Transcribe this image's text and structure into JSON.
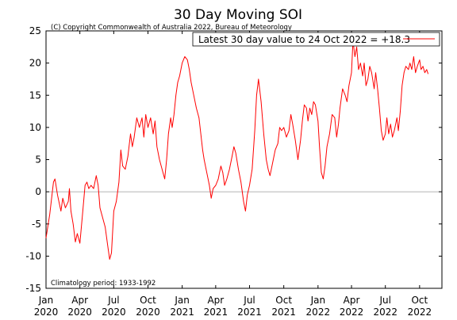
{
  "chart_data": {
    "type": "line",
    "title": "30 Day Moving SOI",
    "copyright": "(C) Copyright Commonwealth of Australia 2022, Bureau of Meteorology",
    "climatology": "Climatology period: 1933-1992",
    "xlabel": "",
    "ylabel": "",
    "ylim": [
      -15,
      25
    ],
    "xlim": [
      "2020-01-01",
      "2022-11-30"
    ],
    "y_ticks": [
      -15,
      -10,
      -5,
      0,
      5,
      10,
      15,
      20,
      25
    ],
    "x_ticks": [
      {
        "date": "2020-01-01",
        "month": "Jan",
        "year": "2020"
      },
      {
        "date": "2020-04-01",
        "month": "Apr",
        "year": "2020"
      },
      {
        "date": "2020-07-01",
        "month": "Jul",
        "year": "2020"
      },
      {
        "date": "2020-10-01",
        "month": "Oct",
        "year": "2020"
      },
      {
        "date": "2021-01-01",
        "month": "Jan",
        "year": "2021"
      },
      {
        "date": "2021-04-01",
        "month": "Apr",
        "year": "2021"
      },
      {
        "date": "2021-07-01",
        "month": "Jul",
        "year": "2021"
      },
      {
        "date": "2021-10-01",
        "month": "Oct",
        "year": "2021"
      },
      {
        "date": "2022-01-01",
        "month": "Jan",
        "year": "2022"
      },
      {
        "date": "2022-04-01",
        "month": "Apr",
        "year": "2022"
      },
      {
        "date": "2022-07-01",
        "month": "Jul",
        "year": "2022"
      },
      {
        "date": "2022-10-01",
        "month": "Oct",
        "year": "2022"
      }
    ],
    "zero_line": true,
    "grid": false,
    "legend": {
      "position": "top-right",
      "label": "Latest 30 day value to 24 Oct 2022 = +18.3"
    },
    "series": [
      {
        "name": "Latest 30 day value to 24 Oct 2022 = +18.3",
        "color": "#ff0000",
        "points": [
          [
            "2020-01-01",
            -7.2
          ],
          [
            "2020-01-11",
            -3.5
          ],
          [
            "2020-01-21",
            1.5
          ],
          [
            "2020-01-25",
            2.0
          ],
          [
            "2020-02-01",
            -0.5
          ],
          [
            "2020-02-10",
            -3.0
          ],
          [
            "2020-02-15",
            -1.0
          ],
          [
            "2020-02-22",
            -2.5
          ],
          [
            "2020-03-01",
            -1.5
          ],
          [
            "2020-03-04",
            0.5
          ],
          [
            "2020-03-08",
            -3.0
          ],
          [
            "2020-03-14",
            -5.0
          ],
          [
            "2020-03-20",
            -7.8
          ],
          [
            "2020-03-25",
            -6.5
          ],
          [
            "2020-04-01",
            -8.0
          ],
          [
            "2020-04-08",
            -3.5
          ],
          [
            "2020-04-15",
            1.0
          ],
          [
            "2020-04-20",
            1.5
          ],
          [
            "2020-04-25",
            0.5
          ],
          [
            "2020-05-01",
            1.0
          ],
          [
            "2020-05-08",
            0.5
          ],
          [
            "2020-05-15",
            2.5
          ],
          [
            "2020-05-20",
            1.0
          ],
          [
            "2020-05-25",
            -2.5
          ],
          [
            "2020-06-01",
            -4.0
          ],
          [
            "2020-06-08",
            -5.5
          ],
          [
            "2020-06-15",
            -8.5
          ],
          [
            "2020-06-20",
            -10.5
          ],
          [
            "2020-06-25",
            -9.5
          ],
          [
            "2020-07-01",
            -3.0
          ],
          [
            "2020-07-08",
            -1.5
          ],
          [
            "2020-07-15",
            1.5
          ],
          [
            "2020-07-20",
            6.5
          ],
          [
            "2020-07-25",
            4.0
          ],
          [
            "2020-08-01",
            3.5
          ],
          [
            "2020-08-08",
            5.5
          ],
          [
            "2020-08-15",
            9.0
          ],
          [
            "2020-08-20",
            7.0
          ],
          [
            "2020-08-25",
            8.5
          ],
          [
            "2020-09-01",
            11.5
          ],
          [
            "2020-09-08",
            10.0
          ],
          [
            "2020-09-15",
            11.5
          ],
          [
            "2020-09-20",
            8.5
          ],
          [
            "2020-09-25",
            12.0
          ],
          [
            "2020-10-01",
            10.0
          ],
          [
            "2020-10-08",
            11.5
          ],
          [
            "2020-10-15",
            9.0
          ],
          [
            "2020-10-20",
            11.0
          ],
          [
            "2020-10-25",
            7.0
          ],
          [
            "2020-11-01",
            5.0
          ],
          [
            "2020-11-08",
            3.5
          ],
          [
            "2020-11-15",
            2.0
          ],
          [
            "2020-11-20",
            5.0
          ],
          [
            "2020-11-25",
            9.0
          ],
          [
            "2020-12-01",
            11.5
          ],
          [
            "2020-12-05",
            10.0
          ],
          [
            "2020-12-10",
            12.0
          ],
          [
            "2020-12-15",
            15.0
          ],
          [
            "2020-12-20",
            17.0
          ],
          [
            "2020-12-25",
            18.0
          ],
          [
            "2021-01-01",
            20.0
          ],
          [
            "2021-01-08",
            21.0
          ],
          [
            "2021-01-15",
            20.5
          ],
          [
            "2021-01-20",
            19.0
          ],
          [
            "2021-01-25",
            17.0
          ],
          [
            "2021-02-01",
            15.0
          ],
          [
            "2021-02-08",
            13.0
          ],
          [
            "2021-02-15",
            11.5
          ],
          [
            "2021-02-20",
            9.0
          ],
          [
            "2021-02-25",
            6.5
          ],
          [
            "2021-03-01",
            5.0
          ],
          [
            "2021-03-08",
            3.0
          ],
          [
            "2021-03-15",
            1.0
          ],
          [
            "2021-03-20",
            -1.0
          ],
          [
            "2021-03-25",
            0.5
          ],
          [
            "2021-04-01",
            1.0
          ],
          [
            "2021-04-08",
            2.0
          ],
          [
            "2021-04-15",
            4.0
          ],
          [
            "2021-04-20",
            3.0
          ],
          [
            "2021-04-25",
            1.0
          ],
          [
            "2021-05-01",
            2.0
          ],
          [
            "2021-05-08",
            3.5
          ],
          [
            "2021-05-15",
            5.5
          ],
          [
            "2021-05-20",
            7.0
          ],
          [
            "2021-05-25",
            6.0
          ],
          [
            "2021-06-01",
            3.5
          ],
          [
            "2021-06-08",
            1.5
          ],
          [
            "2021-06-15",
            -1.5
          ],
          [
            "2021-06-20",
            -3.0
          ],
          [
            "2021-06-25",
            -0.5
          ],
          [
            "2021-07-01",
            1.0
          ],
          [
            "2021-07-08",
            3.5
          ],
          [
            "2021-07-15",
            9.5
          ],
          [
            "2021-07-20",
            15.0
          ],
          [
            "2021-07-25",
            17.5
          ],
          [
            "2021-08-01",
            14.0
          ],
          [
            "2021-08-08",
            9.0
          ],
          [
            "2021-08-15",
            5.0
          ],
          [
            "2021-08-20",
            3.5
          ],
          [
            "2021-08-25",
            2.5
          ],
          [
            "2021-09-01",
            4.5
          ],
          [
            "2021-09-08",
            6.5
          ],
          [
            "2021-09-15",
            7.5
          ],
          [
            "2021-09-20",
            10.0
          ],
          [
            "2021-09-25",
            9.5
          ],
          [
            "2021-10-01",
            10.0
          ],
          [
            "2021-10-08",
            8.5
          ],
          [
            "2021-10-15",
            9.5
          ],
          [
            "2021-10-20",
            12.0
          ],
          [
            "2021-10-25",
            10.5
          ],
          [
            "2021-11-01",
            8.0
          ],
          [
            "2021-11-08",
            5.0
          ],
          [
            "2021-11-15",
            8.0
          ],
          [
            "2021-11-20",
            11.0
          ],
          [
            "2021-11-25",
            13.5
          ],
          [
            "2021-12-01",
            13.0
          ],
          [
            "2021-12-05",
            11.0
          ],
          [
            "2021-12-10",
            13.0
          ],
          [
            "2021-12-15",
            12.0
          ],
          [
            "2021-12-20",
            14.0
          ],
          [
            "2021-12-25",
            13.5
          ],
          [
            "2022-01-01",
            11.0
          ],
          [
            "2022-01-05",
            7.0
          ],
          [
            "2022-01-10",
            3.0
          ],
          [
            "2022-01-15",
            2.0
          ],
          [
            "2022-01-20",
            4.0
          ],
          [
            "2022-01-25",
            7.0
          ],
          [
            "2022-02-01",
            9.0
          ],
          [
            "2022-02-08",
            12.0
          ],
          [
            "2022-02-15",
            11.5
          ],
          [
            "2022-02-20",
            8.5
          ],
          [
            "2022-02-25",
            10.5
          ],
          [
            "2022-03-01",
            13.0
          ],
          [
            "2022-03-08",
            16.0
          ],
          [
            "2022-03-15",
            15.0
          ],
          [
            "2022-03-20",
            14.0
          ],
          [
            "2022-03-25",
            16.5
          ],
          [
            "2022-04-01",
            18.5
          ],
          [
            "2022-04-05",
            23.5
          ],
          [
            "2022-04-10",
            21.0
          ],
          [
            "2022-04-15",
            22.5
          ],
          [
            "2022-04-20",
            19.0
          ],
          [
            "2022-04-25",
            20.0
          ],
          [
            "2022-05-01",
            18.0
          ],
          [
            "2022-05-05",
            20.0
          ],
          [
            "2022-05-10",
            16.5
          ],
          [
            "2022-05-15",
            17.5
          ],
          [
            "2022-05-20",
            19.5
          ],
          [
            "2022-05-25",
            18.5
          ],
          [
            "2022-06-01",
            16.0
          ],
          [
            "2022-06-05",
            18.5
          ],
          [
            "2022-06-10",
            16.0
          ],
          [
            "2022-06-15",
            13.0
          ],
          [
            "2022-06-20",
            9.5
          ],
          [
            "2022-06-25",
            8.0
          ],
          [
            "2022-07-01",
            9.0
          ],
          [
            "2022-07-05",
            11.5
          ],
          [
            "2022-07-10",
            9.0
          ],
          [
            "2022-07-15",
            10.5
          ],
          [
            "2022-07-20",
            8.5
          ],
          [
            "2022-07-25",
            9.5
          ],
          [
            "2022-08-01",
            11.5
          ],
          [
            "2022-08-05",
            9.5
          ],
          [
            "2022-08-10",
            12.5
          ],
          [
            "2022-08-15",
            16.5
          ],
          [
            "2022-08-20",
            18.5
          ],
          [
            "2022-08-25",
            19.5
          ],
          [
            "2022-09-01",
            19.0
          ],
          [
            "2022-09-05",
            20.0
          ],
          [
            "2022-09-10",
            19.0
          ],
          [
            "2022-09-15",
            21.0
          ],
          [
            "2022-09-20",
            18.5
          ],
          [
            "2022-09-25",
            19.5
          ],
          [
            "2022-10-01",
            20.5
          ],
          [
            "2022-10-05",
            19.0
          ],
          [
            "2022-10-10",
            19.5
          ],
          [
            "2022-10-15",
            18.5
          ],
          [
            "2022-10-20",
            19.0
          ],
          [
            "2022-10-24",
            18.3
          ]
        ]
      }
    ]
  }
}
